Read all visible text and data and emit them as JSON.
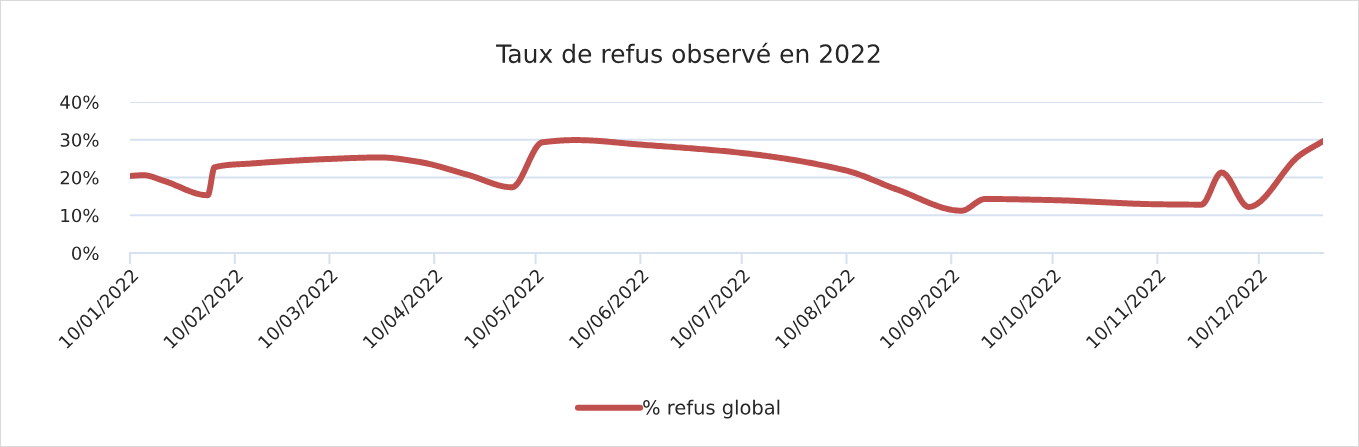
{
  "chart_data": {
    "type": "line",
    "title": "Taux de refus observé en 2022",
    "series": [
      {
        "name": "% refus global",
        "color": "#c0504d",
        "x": [
          "2022-01-10",
          "2022-01-14",
          "2022-01-20",
          "2022-02-02",
          "2022-02-04",
          "2022-02-15",
          "2022-03-10",
          "2022-03-25",
          "2022-04-05",
          "2022-04-20",
          "2022-05-03",
          "2022-05-12",
          "2022-05-22",
          "2022-06-10",
          "2022-07-10",
          "2022-08-10",
          "2022-08-25",
          "2022-09-13",
          "2022-09-20",
          "2022-10-10",
          "2022-11-10",
          "2022-11-23",
          "2022-11-29",
          "2022-12-07",
          "2022-12-22",
          "2022-12-29"
        ],
        "values": [
          20.4,
          20.6,
          19.1,
          15.3,
          22.7,
          23.7,
          24.9,
          25.3,
          24.2,
          20.7,
          17.4,
          29.3,
          29.9,
          28.7,
          26.5,
          21.8,
          16.8,
          11.2,
          14.3,
          14.0,
          12.9,
          12.8,
          21.3,
          12.2,
          25.8,
          29.6
        ]
      }
    ],
    "xlim": [
      "2022-01-10",
      "2022-12-29"
    ],
    "xticks": [
      {
        "value": "2022-01-10",
        "label": "10/01/2022"
      },
      {
        "value": "2022-02-10",
        "label": "10/02/2022"
      },
      {
        "value": "2022-03-10",
        "label": "10/03/2022"
      },
      {
        "value": "2022-04-10",
        "label": "10/04/2022"
      },
      {
        "value": "2022-05-10",
        "label": "10/05/2022"
      },
      {
        "value": "2022-06-10",
        "label": "10/06/2022"
      },
      {
        "value": "2022-07-10",
        "label": "10/07/2022"
      },
      {
        "value": "2022-08-10",
        "label": "10/08/2022"
      },
      {
        "value": "2022-09-10",
        "label": "10/09/2022"
      },
      {
        "value": "2022-10-10",
        "label": "10/10/2022"
      },
      {
        "value": "2022-11-10",
        "label": "10/11/2022"
      },
      {
        "value": "2022-12-10",
        "label": "10/12/2022"
      }
    ],
    "ylim": [
      0,
      40
    ],
    "yticks": [
      {
        "value": 0,
        "label": "0%"
      },
      {
        "value": 10,
        "label": "10%"
      },
      {
        "value": 20,
        "label": "20%"
      },
      {
        "value": 30,
        "label": "30%"
      },
      {
        "value": 40,
        "label": "40%"
      }
    ],
    "grid": "y",
    "legend": "bottom",
    "marker": "none",
    "line_style": "solid"
  }
}
